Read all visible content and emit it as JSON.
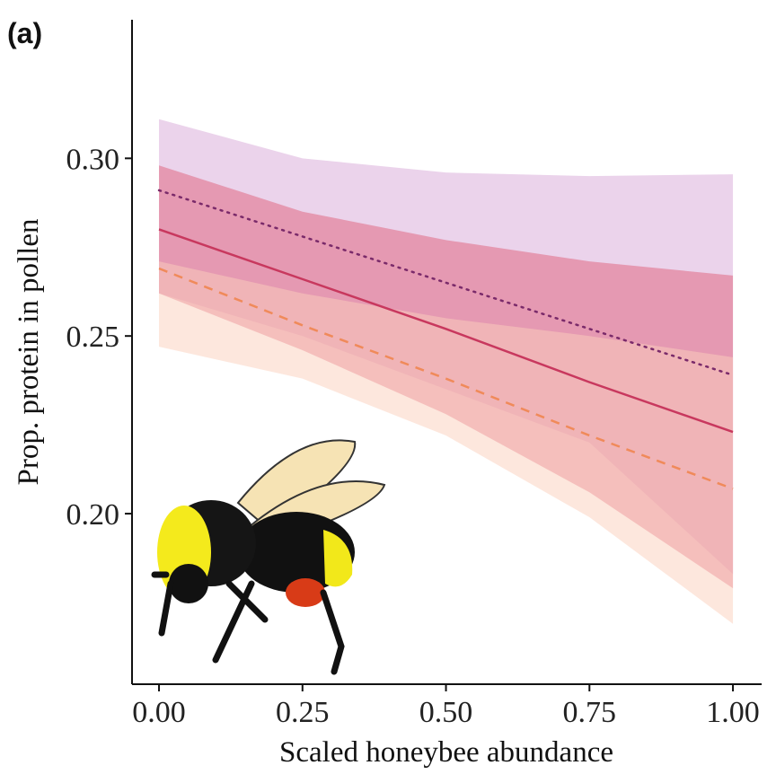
{
  "chart_data": {
    "type": "line",
    "panel_label": "(a)",
    "x_label": "Scaled honeybee abundance",
    "y_label": "Prop. protein in pollen",
    "x": [
      0,
      0.25,
      0.5,
      0.75,
      1
    ],
    "xlim": [
      -0.047,
      1.05
    ],
    "ylim": [
      0.152,
      0.339
    ],
    "xticks": [
      {
        "value": 0,
        "label": "0.00"
      },
      0.25,
      {
        "value": 0.5,
        "label": "0.50"
      },
      0.75,
      {
        "value": 1,
        "label": "1.00"
      }
    ],
    "yticks": [
      {
        "value": 0.2,
        "label": "0.20"
      },
      0.25,
      {
        "value": 0.3,
        "label": "0.30"
      }
    ],
    "grid": false,
    "series": [
      {
        "color": "#7a2a6a",
        "dash": "dotted",
        "band_color": "#d8a8d8",
        "values": [
          0.291,
          0.278,
          0.265,
          0.252,
          0.239
        ],
        "upper": [
          0.311,
          0.3,
          0.296,
          0.295,
          0.2955
        ],
        "lower": [
          0.262,
          0.25,
          0.235,
          0.22,
          0.183
        ]
      },
      {
        "color": "#c8385e",
        "dash": "solid",
        "band_color": "#e0607a",
        "values": [
          0.28,
          0.266,
          0.252,
          0.237,
          0.223
        ],
        "upper": [
          0.298,
          0.285,
          0.277,
          0.271,
          0.267
        ],
        "lower": [
          0.262,
          0.246,
          0.228,
          0.206,
          0.179
        ]
      },
      {
        "color": "#f08a5a",
        "dash": "dashed",
        "band_color": "#fbd0bc",
        "values": [
          0.269,
          0.253,
          0.238,
          0.222,
          0.207
        ],
        "upper": [
          0.271,
          0.262,
          0.255,
          0.25,
          0.244
        ],
        "lower": [
          0.247,
          0.238,
          0.222,
          0.199,
          0.169
        ]
      }
    ]
  }
}
